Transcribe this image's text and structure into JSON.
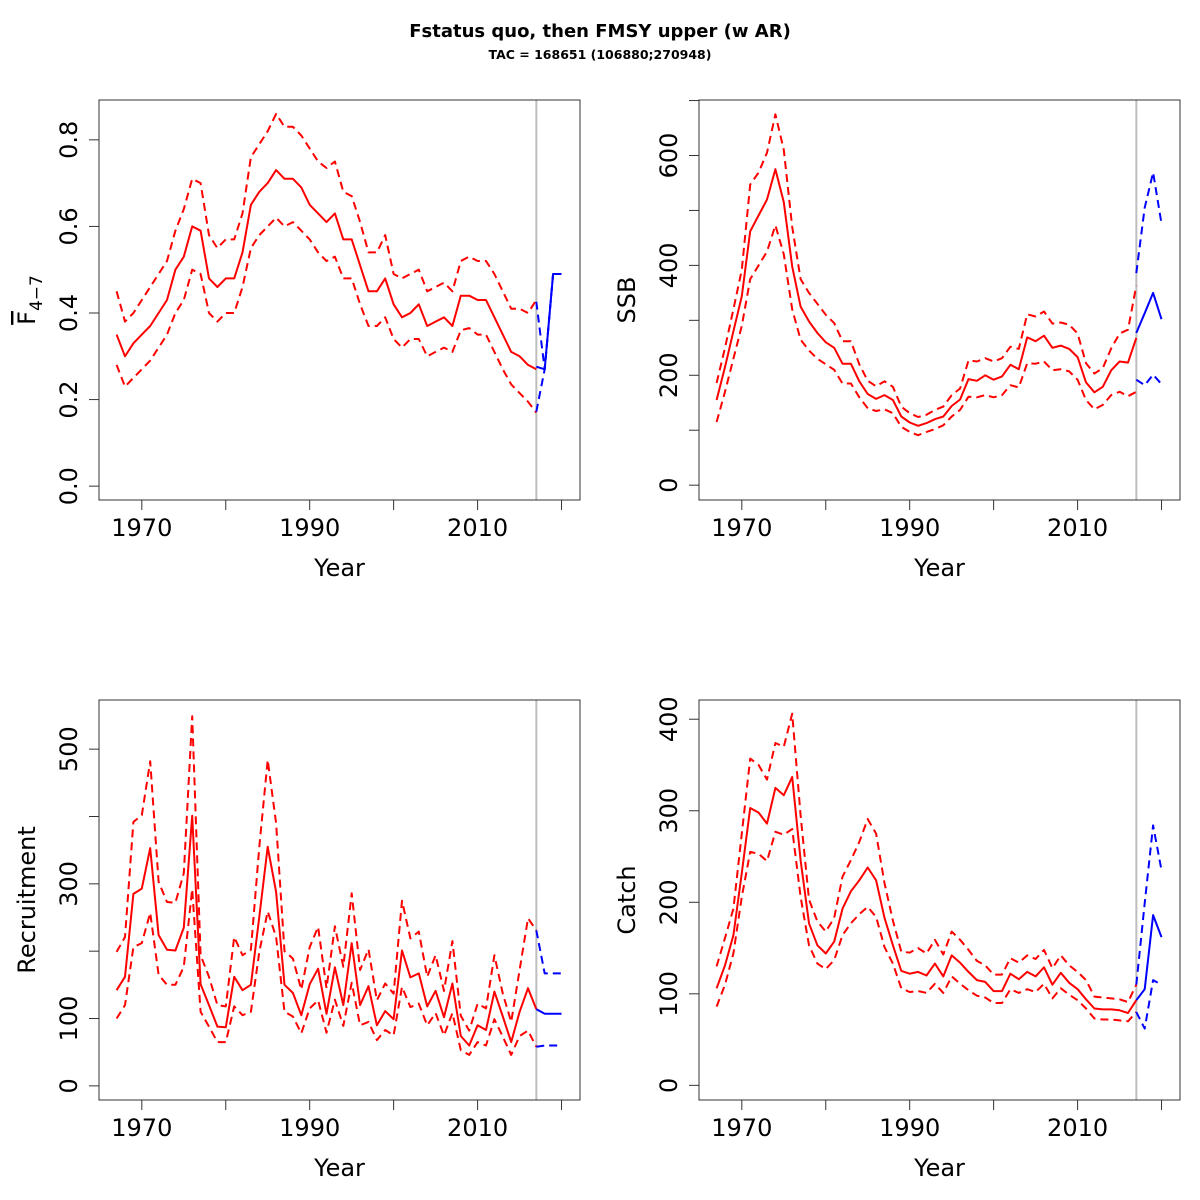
{
  "title": "Fstatus quo, then FMSY upper (w AR)",
  "subtitle": "TAC = 168651 (106880;270948)",
  "colors": {
    "history": "#ff0000",
    "projection": "#0000ff",
    "divider": "#bebebe",
    "axis": "#000000"
  },
  "chart_data": [
    {
      "id": "f",
      "type": "line",
      "position": "top-left",
      "xlabel": "Year",
      "ylabel": "F",
      "ylabel_bar": true,
      "ylabel_subscript": "4−7",
      "xlim": [
        1964.9,
        2022.2
      ],
      "ylim": [
        -0.032,
        0.892
      ],
      "xticks": [
        1970,
        1980,
        1990,
        2000,
        2010,
        2020
      ],
      "xtick_labels": [
        "1970",
        "",
        "1990",
        "",
        "2010",
        ""
      ],
      "yticks": [
        0,
        0.2,
        0.4,
        0.6,
        0.8
      ],
      "ytick_labels": [
        "0.0",
        "0.2",
        "0.4",
        "0.6",
        "0.8"
      ],
      "divider_year": 2017,
      "history": {
        "start_year": 1967,
        "median": [
          0.35,
          0.3,
          0.33,
          0.35,
          0.37,
          0.4,
          0.43,
          0.5,
          0.53,
          0.6,
          0.59,
          0.48,
          0.46,
          0.48,
          0.48,
          0.54,
          0.65,
          0.68,
          0.7,
          0.73,
          0.71,
          0.71,
          0.69,
          0.65,
          0.63,
          0.61,
          0.63,
          0.57,
          0.57,
          0.51,
          0.45,
          0.45,
          0.48,
          0.42,
          0.39,
          0.4,
          0.42,
          0.37,
          0.38,
          0.39,
          0.37,
          0.44,
          0.44,
          0.43,
          0.43,
          0.39,
          0.35,
          0.31,
          0.3,
          0.28,
          0.27
        ],
        "upper": [
          0.45,
          0.38,
          0.4,
          0.43,
          0.46,
          0.49,
          0.52,
          0.59,
          0.64,
          0.71,
          0.7,
          0.58,
          0.55,
          0.57,
          0.57,
          0.63,
          0.76,
          0.79,
          0.82,
          0.86,
          0.83,
          0.83,
          0.81,
          0.78,
          0.75,
          0.735,
          0.75,
          0.68,
          0.67,
          0.61,
          0.54,
          0.54,
          0.58,
          0.49,
          0.48,
          0.49,
          0.5,
          0.45,
          0.46,
          0.47,
          0.45,
          0.52,
          0.53,
          0.52,
          0.52,
          0.49,
          0.45,
          0.41,
          0.41,
          0.4,
          0.43
        ],
        "lower": [
          0.28,
          0.23,
          0.25,
          0.27,
          0.29,
          0.32,
          0.35,
          0.4,
          0.43,
          0.5,
          0.49,
          0.4,
          0.38,
          0.4,
          0.4,
          0.46,
          0.55,
          0.58,
          0.6,
          0.62,
          0.6,
          0.61,
          0.59,
          0.57,
          0.54,
          0.52,
          0.53,
          0.48,
          0.48,
          0.42,
          0.37,
          0.37,
          0.39,
          0.34,
          0.32,
          0.34,
          0.34,
          0.3,
          0.31,
          0.32,
          0.31,
          0.36,
          0.365,
          0.35,
          0.35,
          0.31,
          0.27,
          0.235,
          0.215,
          0.195,
          0.17
        ]
      },
      "projection": {
        "start_year": 2017,
        "median": [
          0.276,
          0.27,
          0.49,
          0.49
        ],
        "upper": [
          0.426,
          0.27,
          0.49,
          0.49
        ],
        "lower": [
          0.172,
          0.27,
          0.49,
          0.49
        ]
      }
    },
    {
      "id": "ssb",
      "type": "line",
      "position": "top-right",
      "xlabel": "Year",
      "ylabel": "SSB",
      "xlim": [
        1964.9,
        2022.2
      ],
      "ylim": [
        -27,
        701
      ],
      "xticks": [
        1970,
        1980,
        1990,
        2000,
        2010,
        2020
      ],
      "xtick_labels": [
        "1970",
        "",
        "1990",
        "",
        "2010",
        ""
      ],
      "yticks": [
        0,
        100,
        200,
        300,
        400,
        500,
        600,
        700
      ],
      "ytick_labels": [
        "0",
        "",
        "200",
        "",
        "400",
        "",
        "600",
        ""
      ],
      "divider_year": 2017,
      "history": {
        "start_year": 1967,
        "median": [
          155,
          215,
          280,
          344,
          462,
          491,
          520,
          575,
          515,
          398,
          325,
          298,
          277,
          260,
          250,
          221,
          221,
          189,
          166,
          157,
          164,
          155,
          125,
          114,
          108,
          113,
          120,
          125,
          144,
          156,
          193,
          190,
          200,
          192,
          198,
          219,
          211,
          269,
          262,
          272,
          250,
          254,
          248,
          233,
          187,
          169,
          179,
          209,
          225,
          223,
          268
        ],
        "upper": [
          186,
          250,
          320,
          392,
          547,
          569,
          605,
          675,
          610,
          470,
          375,
          350,
          330,
          310,
          295,
          262,
          262,
          220,
          190,
          180,
          189,
          179,
          143,
          131,
          124,
          128,
          137,
          143,
          164,
          176,
          227,
          225,
          231,
          225,
          231,
          252,
          248,
          311,
          307,
          316,
          294,
          296,
          292,
          276,
          222,
          203,
          213,
          249,
          276,
          283,
          363
        ],
        "lower": [
          115,
          170,
          230,
          290,
          375,
          400,
          425,
          473,
          420,
          320,
          265,
          245,
          230,
          220,
          210,
          185,
          185,
          160,
          140,
          135,
          138,
          131,
          106,
          97,
          91,
          97,
          102,
          109,
          125,
          137,
          161,
          160,
          164,
          160,
          164,
          182,
          178,
          222,
          221,
          225,
          209,
          211,
          207,
          192,
          155,
          138,
          146,
          164,
          170,
          162,
          170
        ]
      },
      "projection": {
        "start_year": 2017,
        "median": [
          277,
          313,
          350,
          302
        ],
        "upper": [
          386,
          505,
          569,
          476
        ],
        "lower": [
          192,
          182,
          201,
          184
        ]
      }
    },
    {
      "id": "recruitment",
      "type": "line",
      "position": "bottom-left",
      "xlabel": "Year",
      "ylabel": "Recruitment",
      "xlim": [
        1964.9,
        2022.2
      ],
      "ylim": [
        -21,
        573
      ],
      "xticks": [
        1970,
        1980,
        1990,
        2000,
        2010,
        2020
      ],
      "xtick_labels": [
        "1970",
        "",
        "1990",
        "",
        "2010",
        ""
      ],
      "yticks": [
        0,
        100,
        200,
        300,
        400,
        500
      ],
      "ytick_labels": [
        "0",
        "100",
        "",
        "300",
        "",
        "500"
      ],
      "divider_year": 2017,
      "history": {
        "start_year": 1967,
        "median": [
          142,
          162,
          285,
          293,
          353,
          224,
          202,
          201,
          235,
          401,
          151,
          120,
          88,
          87,
          162,
          142,
          150,
          251,
          355,
          288,
          150,
          138,
          105,
          151,
          174,
          107,
          176,
          120,
          212,
          120,
          148,
          90,
          111,
          99,
          201,
          161,
          167,
          118,
          141,
          102,
          152,
          74,
          60,
          90,
          83,
          140,
          103,
          65,
          110,
          145,
          114
        ],
        "upper": [
          199,
          221,
          392,
          402,
          482,
          303,
          273,
          272,
          316,
          549,
          194,
          162,
          120,
          118,
          221,
          194,
          202,
          355,
          484,
          390,
          200,
          189,
          143,
          206,
          236,
          145,
          237,
          177,
          286,
          172,
          203,
          127,
          152,
          137,
          275,
          219,
          229,
          162,
          194,
          141,
          215,
          104,
          82,
          122,
          115,
          194,
          137,
          95,
          172,
          249,
          231
        ],
        "lower": [
          100,
          120,
          206,
          212,
          257,
          165,
          150,
          150,
          177,
          292,
          110,
          88,
          65,
          65,
          118,
          105,
          110,
          199,
          259,
          221,
          110,
          103,
          78,
          115,
          127,
          79,
          128,
          89,
          153,
          90,
          95,
          68,
          83,
          75,
          147,
          117,
          122,
          90,
          108,
          75,
          108,
          53,
          46,
          65,
          60,
          99,
          73,
          46,
          74,
          82,
          58
        ]
      },
      "projection": {
        "start_year": 2017,
        "median": [
          114,
          107,
          107,
          107
        ],
        "upper": [
          231,
          167,
          167,
          167
        ],
        "lower": [
          58,
          60,
          60,
          60
        ]
      }
    },
    {
      "id": "catch",
      "type": "line",
      "position": "bottom-right",
      "xlabel": "Year",
      "ylabel": "Catch",
      "xlim": [
        1964.9,
        2022.2
      ],
      "ylim": [
        -16,
        421
      ],
      "xticks": [
        1970,
        1980,
        1990,
        2000,
        2010,
        2020
      ],
      "xtick_labels": [
        "1970",
        "",
        "1990",
        "",
        "2010",
        ""
      ],
      "yticks": [
        0,
        100,
        200,
        300,
        400
      ],
      "ytick_labels": [
        "0",
        "100",
        "200",
        "300",
        "400"
      ],
      "divider_year": 2017,
      "history": {
        "start_year": 1967,
        "median": [
          106,
          131,
          164,
          232,
          303,
          298,
          286,
          325,
          317,
          337,
          246,
          177,
          153,
          144,
          157,
          193,
          212,
          224,
          238,
          224,
          183,
          153,
          125,
          122,
          124,
          120,
          133,
          119,
          142,
          134,
          124,
          115,
          113,
          103,
          103,
          122,
          116,
          124,
          119,
          129,
          110,
          123,
          112,
          105,
          94,
          84,
          83,
          83,
          82,
          79,
          93
        ],
        "upper": [
          130,
          161,
          193,
          275,
          357,
          350,
          334,
          374,
          370,
          406,
          295,
          203,
          179,
          168,
          183,
          228,
          246,
          266,
          291,
          275,
          221,
          180,
          146,
          145,
          150,
          144,
          159,
          143,
          168,
          159,
          148,
          136,
          131,
          121,
          121,
          139,
          134,
          142,
          138,
          148,
          128,
          142,
          131,
          124,
          115,
          97,
          96,
          95,
          94,
          91,
          110
        ],
        "lower": [
          86,
          110,
          144,
          206,
          255,
          253,
          245,
          277,
          274,
          280,
          206,
          153,
          133,
          127,
          137,
          164,
          177,
          187,
          195,
          184,
          151,
          133,
          106,
          102,
          103,
          101,
          111,
          101,
          119,
          111,
          104,
          98,
          96,
          90,
          90,
          105,
          101,
          105,
          102,
          111,
          95,
          106,
          99,
          93,
          84,
          73,
          72,
          72,
          71,
          70,
          80
        ]
      },
      "projection": {
        "start_year": 2017,
        "median": [
          93,
          105,
          186,
          162
        ],
        "upper": [
          110,
          199,
          284,
          235
        ],
        "lower": [
          80,
          62,
          115,
          110
        ]
      }
    }
  ]
}
